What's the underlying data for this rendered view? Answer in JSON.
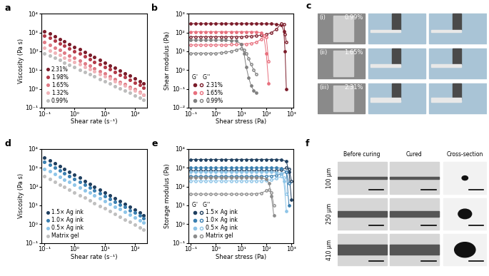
{
  "chart_data": [
    {
      "panel_label": "a",
      "type": "scatter",
      "marker": "o",
      "line_style": "none",
      "log": true,
      "x_label": "Shear rate (s⁻¹)",
      "y_label": "Viscosity (Pa s)",
      "xlim": [
        0.08,
        250
      ],
      "ylim": [
        0.1,
        10000
      ],
      "xticks": [
        {
          "value": 0.1,
          "label": "10⁻¹"
        },
        {
          "value": 1,
          "label": "10⁰"
        },
        {
          "value": 10,
          "label": "10¹"
        },
        {
          "value": 100,
          "label": "10²"
        }
      ],
      "yticks": [
        {
          "value": 0.1,
          "label": "10⁻¹"
        },
        {
          "value": 1,
          "label": "10⁰"
        },
        {
          "value": 10,
          "label": "10¹"
        },
        {
          "value": 100,
          "label": "10²"
        },
        {
          "value": 1000,
          "label": "10³"
        },
        {
          "value": 10000,
          "label": "10⁴"
        }
      ],
      "legend": "lower left",
      "x": [
        0.1,
        0.15,
        0.22,
        0.32,
        0.46,
        0.68,
        1,
        1.5,
        2.2,
        3.2,
        4.6,
        6.8,
        10,
        15,
        22,
        32,
        46,
        68,
        100,
        150,
        200
      ],
      "series": [
        {
          "name": "2.31%",
          "color": "#7b1c2a",
          "values": [
            1200,
            870,
            630,
            455,
            330,
            240,
            174,
            126,
            91,
            66,
            48,
            35,
            25,
            18,
            13,
            9.5,
            6.9,
            5.0,
            3.6,
            2.6,
            1.9
          ]
        },
        {
          "name": "1.98%",
          "color": "#b23a48",
          "values": [
            700,
            510,
            370,
            270,
            195,
            140,
            102,
            74,
            54,
            39,
            28,
            20,
            15,
            11,
            7.8,
            5.6,
            4.1,
            3.0,
            2.2,
            1.6,
            1.15
          ]
        },
        {
          "name": "1.65%",
          "color": "#e07a85",
          "values": [
            300,
            220,
            160,
            115,
            84,
            61,
            44,
            32,
            23,
            17,
            12,
            8.8,
            6.4,
            4.6,
            3.4,
            2.4,
            1.8,
            1.3,
            0.93,
            0.68,
            0.5
          ]
        },
        {
          "name": "1.32%",
          "color": "#f0b3b8",
          "values": [
            150,
            112,
            84,
            63,
            47,
            35,
            26,
            20,
            15,
            11,
            8.3,
            6.2,
            4.7,
            3.5,
            2.6,
            2.0,
            1.5,
            1.1,
            0.83,
            0.62,
            0.47
          ]
        },
        {
          "name": "0.99%",
          "color": "#bdbdbd",
          "values": [
            80,
            60,
            45,
            34,
            25,
            19,
            14,
            10.6,
            8.0,
            6.0,
            4.5,
            3.4,
            2.5,
            1.9,
            1.4,
            1.07,
            0.8,
            0.6,
            0.45,
            0.34,
            0.25
          ]
        }
      ]
    },
    {
      "panel_label": "b",
      "type": "scatter",
      "marker": "o",
      "line_style": "solid",
      "log": true,
      "x_label": "Shear stress (Pa)",
      "y_label": "Shear modulus (Pa)",
      "xlim": [
        0.08,
        1200
      ],
      "ylim": [
        0.01,
        1000
      ],
      "xticks": [
        {
          "value": 0.1,
          "label": "10⁻¹"
        },
        {
          "value": 1,
          "label": "10⁰"
        },
        {
          "value": 10,
          "label": "10¹"
        },
        {
          "value": 100,
          "label": "10²"
        },
        {
          "value": 1000,
          "label": "10³"
        }
      ],
      "yticks": [
        {
          "value": 0.01,
          "label": "10⁻²"
        },
        {
          "value": 0.1,
          "label": "10⁻¹"
        },
        {
          "value": 1,
          "label": "10⁰"
        },
        {
          "value": 10,
          "label": "10¹"
        },
        {
          "value": 100,
          "label": "10²"
        },
        {
          "value": 1000,
          "label": "10³"
        }
      ],
      "legend": "lower left",
      "legend_title": "G'   G''",
      "series": [
        {
          "name": "2.31%",
          "color": "#7b1c2a",
          "x": [
            0.1,
            0.16,
            0.25,
            0.4,
            0.63,
            1,
            1.6,
            2.5,
            4,
            6.3,
            10,
            16,
            25,
            40,
            63,
            100,
            160,
            250,
            400,
            500,
            560,
            630
          ],
          "storage": [
            300,
            300,
            300,
            300,
            300,
            300,
            300,
            300,
            300,
            300,
            300,
            300,
            300,
            298,
            296,
            293,
            290,
            280,
            250,
            120,
            10,
            0.1
          ],
          "loss": [
            60,
            60,
            60,
            60,
            60,
            60,
            60,
            60,
            60,
            60,
            60,
            62,
            65,
            68,
            72,
            80,
            100,
            150,
            300,
            280,
            80,
            30
          ]
        },
        {
          "name": "1.65%",
          "color": "#e8707e",
          "x": [
            0.1,
            0.16,
            0.25,
            0.4,
            0.63,
            1,
            1.6,
            2.5,
            4,
            6.3,
            10,
            16,
            25,
            40,
            63,
            80,
            100,
            125
          ],
          "storage": [
            110,
            110,
            110,
            110,
            110,
            110,
            110,
            110,
            110,
            110,
            110,
            110,
            110,
            108,
            100,
            70,
            8,
            0.2
          ],
          "loss": [
            22,
            22,
            22,
            22,
            22,
            22,
            22,
            22,
            23,
            23,
            24,
            25,
            27,
            30,
            45,
            70,
            60,
            3
          ]
        },
        {
          "name": "0.99%",
          "color": "#808080",
          "x": [
            0.1,
            0.16,
            0.25,
            0.4,
            0.63,
            1,
            1.6,
            2.5,
            4,
            6.3,
            10,
            13,
            16,
            20,
            25,
            32,
            40
          ],
          "storage": [
            40,
            40,
            40,
            40,
            40,
            40,
            40,
            39,
            38,
            36,
            25,
            8,
            1.5,
            0.4,
            0.15,
            0.08,
            0.06
          ],
          "loss": [
            8,
            8,
            8,
            8,
            8,
            8,
            8.5,
            9,
            10,
            12,
            14,
            12,
            8,
            4,
            2,
            1,
            0.6
          ]
        }
      ]
    },
    {
      "panel_label": "d",
      "type": "scatter",
      "marker": "o",
      "line_style": "none",
      "log": true,
      "x_label": "Shear rate (s⁻¹)",
      "y_label": "Viscosity (Pa s)",
      "xlim": [
        0.08,
        250
      ],
      "ylim": [
        0.1,
        10000
      ],
      "xticks": [
        {
          "value": 0.1,
          "label": "10⁻¹"
        },
        {
          "value": 1,
          "label": "10⁰"
        },
        {
          "value": 10,
          "label": "10¹"
        },
        {
          "value": 100,
          "label": "10²"
        }
      ],
      "yticks": [
        {
          "value": 0.1,
          "label": "10⁻¹"
        },
        {
          "value": 1,
          "label": "10⁰"
        },
        {
          "value": 10,
          "label": "10¹"
        },
        {
          "value": 100,
          "label": "10²"
        },
        {
          "value": 1000,
          "label": "10³"
        },
        {
          "value": 10000,
          "label": "10⁴"
        }
      ],
      "legend": "lower left",
      "x": [
        0.1,
        0.15,
        0.22,
        0.32,
        0.46,
        0.68,
        1,
        1.5,
        2.2,
        3.2,
        4.6,
        6.8,
        10,
        15,
        22,
        32,
        46,
        68,
        100,
        150,
        200
      ],
      "series": [
        {
          "name": "1.5× Ag ink",
          "color": "#1f3f5f",
          "values": [
            3500,
            2450,
            1720,
            1200,
            840,
            590,
            410,
            290,
            200,
            140,
            99,
            69,
            48,
            34,
            24,
            17,
            12,
            8.1,
            5.7,
            4.0,
            2.8
          ]
        },
        {
          "name": "1.0× Ag ink",
          "color": "#3a7fb0",
          "values": [
            2000,
            1420,
            1000,
            710,
            500,
            355,
            250,
            178,
            126,
            89,
            63,
            45,
            32,
            22,
            16,
            11,
            8.0,
            5.6,
            4.0,
            2.8,
            2.0
          ]
        },
        {
          "name": "0.5× Ag ink",
          "color": "#8ec5e8",
          "values": [
            900,
            646,
            464,
            333,
            239,
            172,
            123,
            88,
            64,
            46,
            33,
            23,
            17,
            12,
            8.6,
            6.2,
            4.4,
            3.2,
            2.3,
            1.6,
            1.2
          ]
        },
        {
          "name": "Matrix gel",
          "color": "#c0c0c0",
          "values": [
            350,
            252,
            181,
            130,
            94,
            68,
            49,
            35,
            25,
            18,
            13,
            9.4,
            6.8,
            4.9,
            3.5,
            2.5,
            1.8,
            1.3,
            0.95,
            0.68,
            0.5
          ]
        }
      ]
    },
    {
      "panel_label": "e",
      "type": "scatter",
      "marker": "o",
      "line_style": "solid",
      "log": true,
      "x_label": "Shear stress (Pa)",
      "y_label": "Storage modulus (Pa)",
      "xlim": [
        0.08,
        1200
      ],
      "ylim": [
        0.1,
        10000
      ],
      "xticks": [
        {
          "value": 0.1,
          "label": "10⁻¹"
        },
        {
          "value": 1,
          "label": "10⁰"
        },
        {
          "value": 10,
          "label": "10¹"
        },
        {
          "value": 100,
          "label": "10²"
        },
        {
          "value": 1000,
          "label": "10³"
        }
      ],
      "yticks": [
        {
          "value": 0.1,
          "label": "10⁻¹"
        },
        {
          "value": 1,
          "label": "10⁰"
        },
        {
          "value": 10,
          "label": "10¹"
        },
        {
          "value": 100,
          "label": "10²"
        },
        {
          "value": 1000,
          "label": "10³"
        },
        {
          "value": 10000,
          "label": "10⁴"
        }
      ],
      "legend": "lower left",
      "legend_title": "G'   G''",
      "series": [
        {
          "name": "1.5× Ag ink",
          "color": "#1f3f5f",
          "x": [
            0.1,
            0.16,
            0.25,
            0.4,
            0.63,
            1,
            1.6,
            2.5,
            4,
            6.3,
            10,
            16,
            25,
            40,
            63,
            100,
            160,
            250,
            400,
            630,
            800,
            1000
          ],
          "storage": [
            2800,
            2800,
            2800,
            2800,
            2800,
            2800,
            2800,
            2800,
            2800,
            2800,
            2800,
            2800,
            2800,
            2800,
            2800,
            2800,
            2800,
            2800,
            2700,
            2200,
            600,
            20
          ],
          "loss": [
            700,
            700,
            700,
            700,
            700,
            700,
            700,
            700,
            700,
            700,
            700,
            700,
            700,
            700,
            700,
            700,
            700,
            720,
            800,
            1000,
            900,
            200
          ]
        },
        {
          "name": "1.0× Ag ink",
          "color": "#3a7fb0",
          "x": [
            0.1,
            0.16,
            0.25,
            0.4,
            0.63,
            1,
            1.6,
            2.5,
            4,
            6.3,
            10,
            16,
            25,
            40,
            63,
            100,
            160,
            250,
            400,
            630,
            800
          ],
          "storage": [
            1000,
            1000,
            1000,
            1000,
            1000,
            1000,
            1000,
            1000,
            1000,
            1000,
            1000,
            1000,
            1000,
            1000,
            1000,
            1000,
            1000,
            1000,
            950,
            600,
            10
          ],
          "loss": [
            350,
            350,
            350,
            350,
            350,
            350,
            350,
            350,
            350,
            350,
            350,
            350,
            350,
            350,
            350,
            350,
            370,
            400,
            480,
            600,
            150
          ]
        },
        {
          "name": "0.5× Ag ink",
          "color": "#8ec5e8",
          "x": [
            0.1,
            0.16,
            0.25,
            0.4,
            0.63,
            1,
            1.6,
            2.5,
            4,
            6.3,
            10,
            16,
            25,
            40,
            63,
            100,
            160,
            250,
            400,
            500,
            630
          ],
          "storage": [
            600,
            600,
            600,
            600,
            600,
            600,
            600,
            600,
            600,
            600,
            600,
            600,
            600,
            600,
            600,
            600,
            600,
            580,
            500,
            200,
            5
          ],
          "loss": [
            200,
            200,
            200,
            200,
            200,
            200,
            200,
            200,
            200,
            200,
            200,
            200,
            200,
            200,
            200,
            210,
            230,
            270,
            350,
            300,
            40
          ]
        },
        {
          "name": "Matrix gel",
          "color": "#8c8c8c",
          "x": [
            0.1,
            0.16,
            0.25,
            0.4,
            0.63,
            1,
            1.6,
            2.5,
            4,
            6.3,
            10,
            16,
            25,
            40,
            63,
            100,
            130,
            160,
            200
          ],
          "storage": [
            300,
            300,
            300,
            300,
            300,
            300,
            300,
            300,
            300,
            300,
            300,
            300,
            300,
            300,
            290,
            250,
            150,
            30,
            3
          ],
          "loss": [
            40,
            40,
            40,
            40,
            40,
            40,
            40,
            40,
            40,
            40,
            40,
            40,
            40,
            42,
            45,
            60,
            70,
            50,
            10
          ]
        }
      ]
    }
  ],
  "photo_panels": {
    "c": {
      "panel_label": "c",
      "rows": [
        {
          "index": "(i)",
          "label": "0.99%"
        },
        {
          "index": "(ii)",
          "label": "1.65%"
        },
        {
          "index": "(iii)",
          "label": "2.31%"
        }
      ]
    },
    "f": {
      "panel_label": "f",
      "columns": [
        "Before curing",
        "Cured",
        "Cross-section"
      ],
      "rows": [
        "100 μm",
        "250 μm",
        "410 μm"
      ]
    }
  }
}
